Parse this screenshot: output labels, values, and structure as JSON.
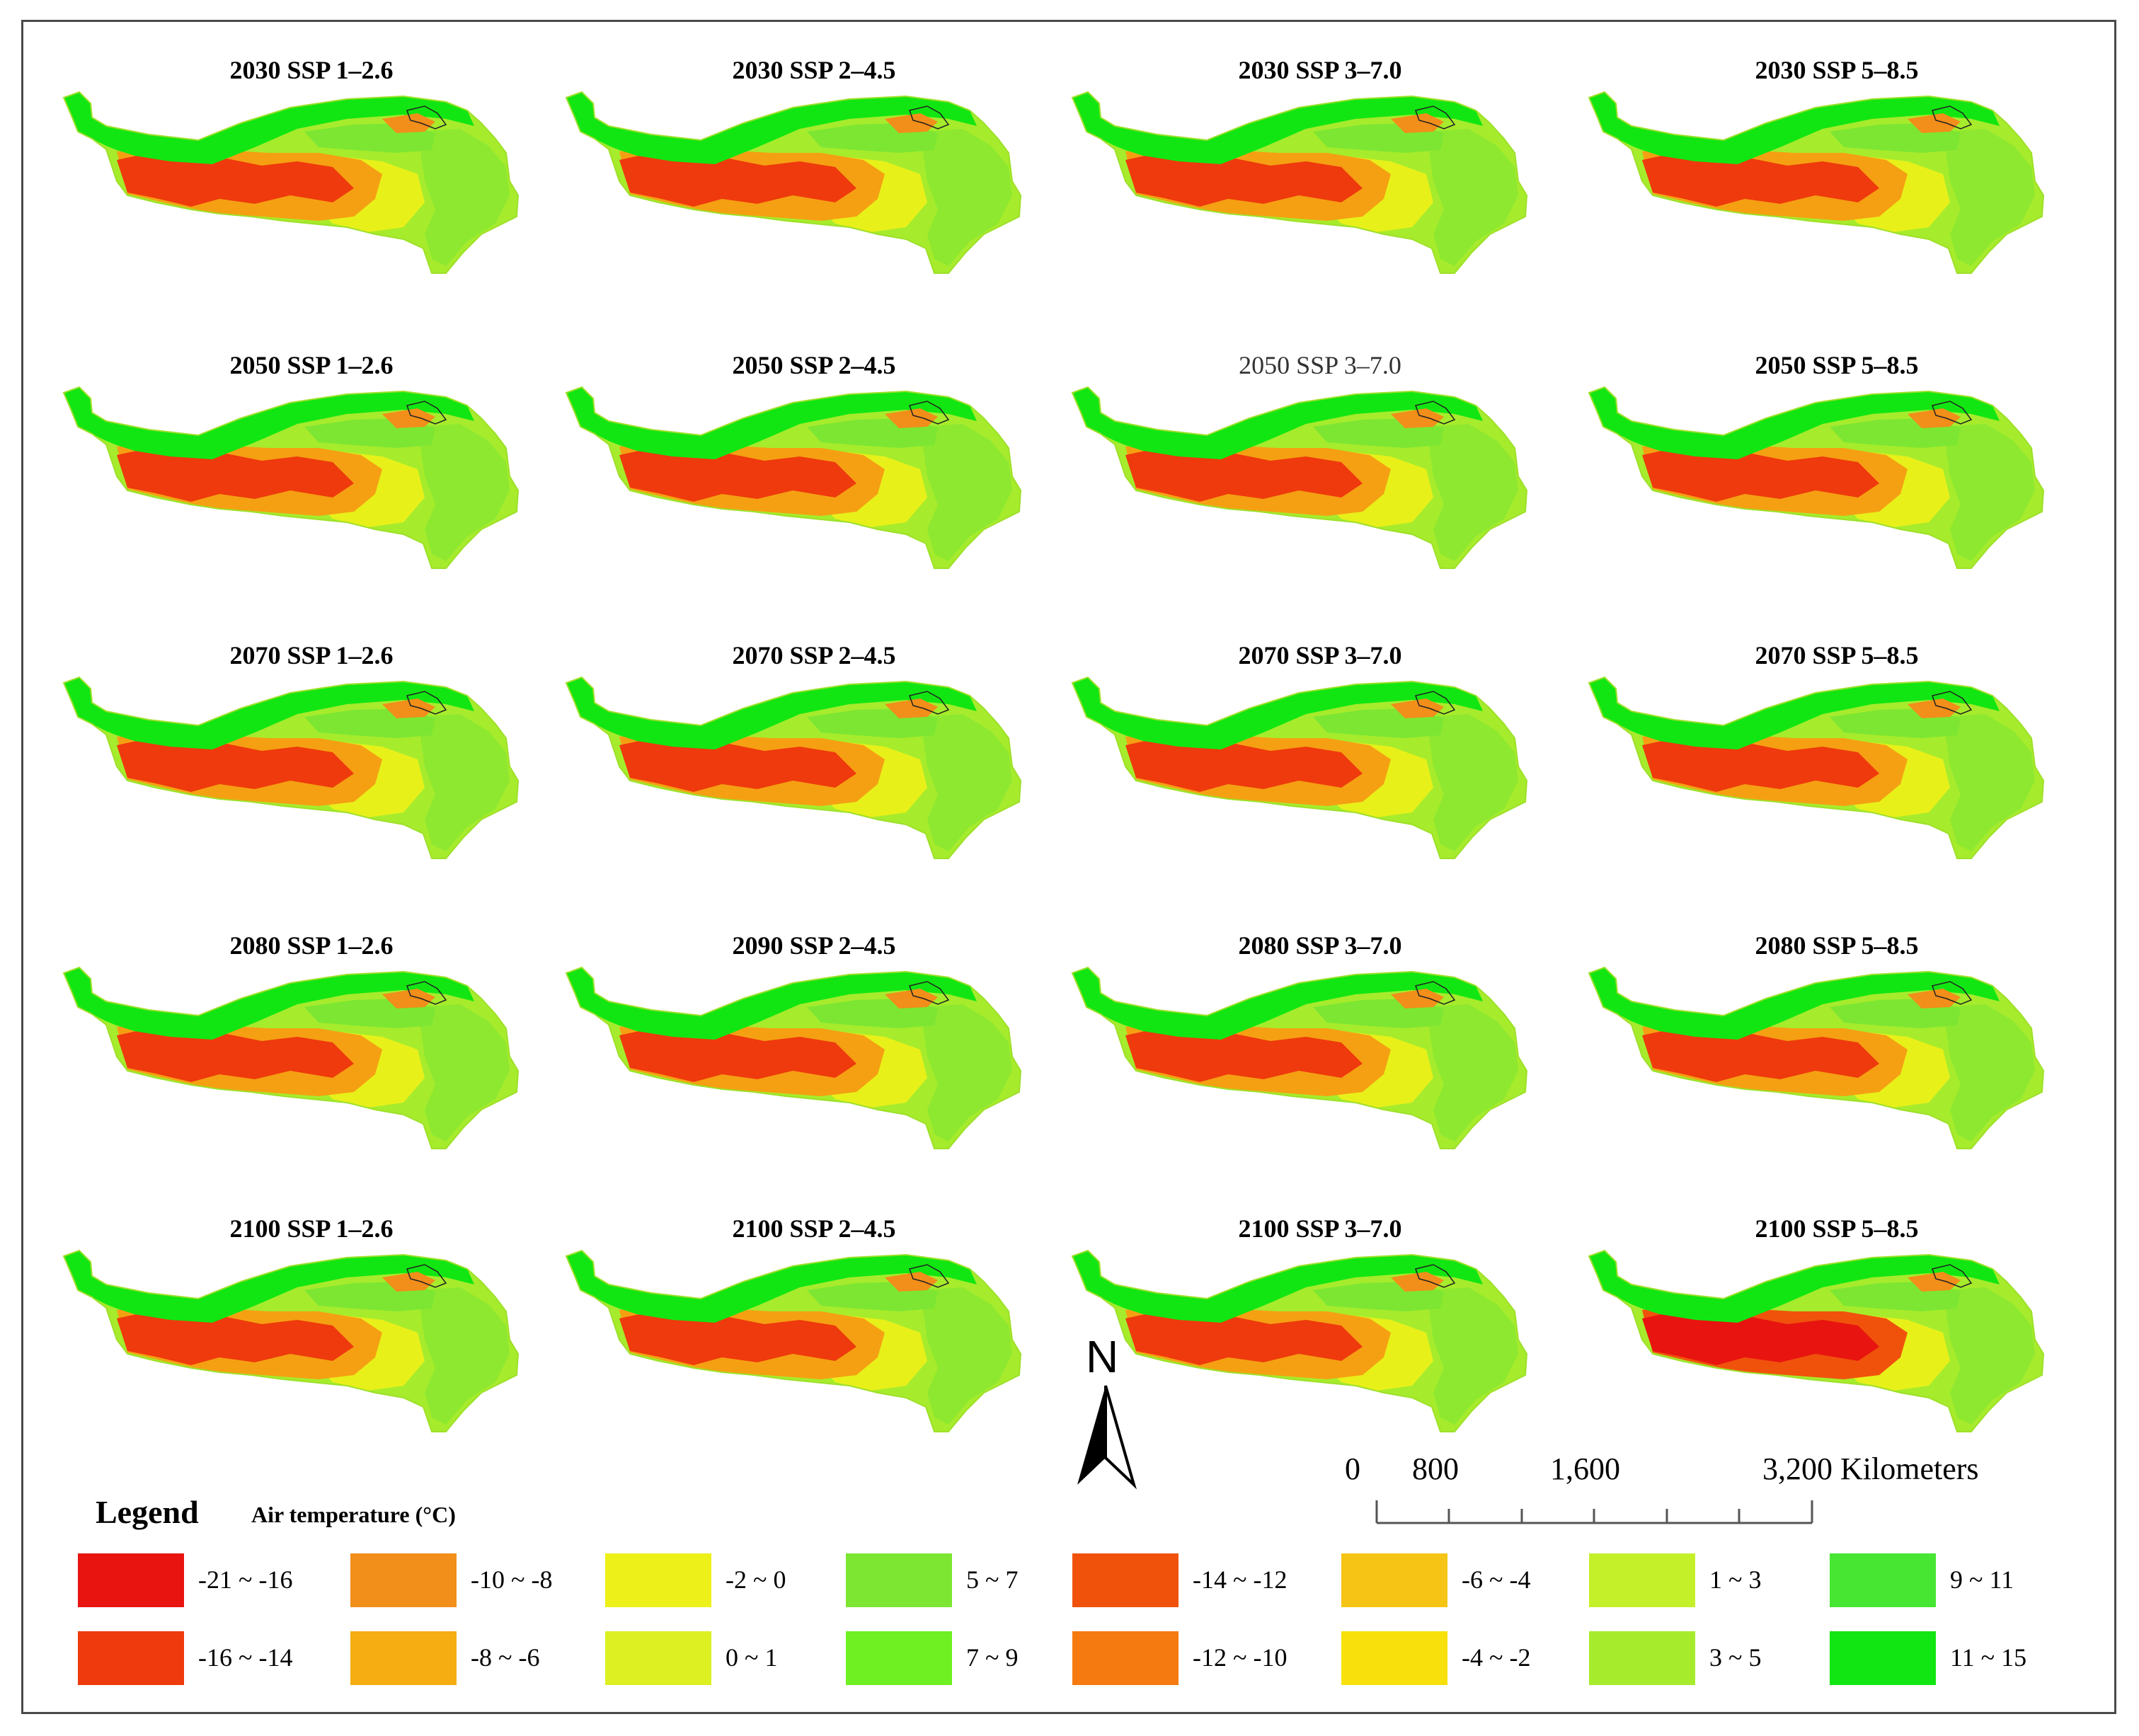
{
  "panels": [
    {
      "title": "2030 SSP 1–2.6",
      "warm": 0
    },
    {
      "title": "2030 SSP 2–4.5",
      "warm": 0
    },
    {
      "title": "2030 SSP 3–7.0",
      "warm": 0
    },
    {
      "title": "2030 SSP 5–8.5",
      "warm": 0
    },
    {
      "title": "2050 SSP 1–2.6",
      "warm": 0
    },
    {
      "title": "2050 SSP 2–4.5",
      "warm": 0
    },
    {
      "title": "2050 SSP 3–7.0",
      "warm": 0
    },
    {
      "title": "2050 SSP 5–8.5",
      "warm": 0
    },
    {
      "title": "2070 SSP 1–2.6",
      "warm": 0
    },
    {
      "title": "2070 SSP 2–4.5",
      "warm": 0
    },
    {
      "title": "2070 SSP 3–7.0",
      "warm": 0
    },
    {
      "title": "2070 SSP 5–8.5",
      "warm": 0
    },
    {
      "title": "2080 SSP 1–2.6",
      "warm": 0
    },
    {
      "title": "2090 SSP 2–4.5",
      "warm": 0
    },
    {
      "title": "2080 SSP 3–7.0",
      "warm": 0
    },
    {
      "title": "2080 SSP 5–8.5",
      "warm": 0
    },
    {
      "title": "2100 SSP 1–2.6",
      "warm": 0
    },
    {
      "title": "2100 SSP 2–4.5",
      "warm": 0
    },
    {
      "title": "2100 SSP 3–7.0",
      "warm": 0
    },
    {
      "title": "2100 SSP 5–8.5",
      "warm": 1
    }
  ],
  "north_arrow": {
    "label": "N"
  },
  "scale_bar": {
    "labels": [
      "0",
      "800",
      "1,600",
      "3,200 Kilometers"
    ],
    "units": "Kilometers"
  },
  "legend": {
    "title": "Legend",
    "subtitle": "Air temperature (°C)",
    "items": [
      {
        "label": "-21 ~ -16",
        "color": "#e8140f"
      },
      {
        "label": "-16 ~ -14",
        "color": "#ee3a0c"
      },
      {
        "label": "-10 ~ -8",
        "color": "#f28e1a"
      },
      {
        "label": "-8 ~ -6",
        "color": "#f5ad12"
      },
      {
        "label": "-2 ~ 0",
        "color": "#eef01a"
      },
      {
        "label": "0 ~ 1",
        "color": "#dcf022"
      },
      {
        "label": "5 ~ 7",
        "color": "#7de632"
      },
      {
        "label": "7 ~ 9",
        "color": "#6ef022"
      },
      {
        "label": "-14 ~ -12",
        "color": "#f0520c"
      },
      {
        "label": "-12 ~ -10",
        "color": "#f57a10"
      },
      {
        "label": "-6 ~ -4",
        "color": "#f5c414"
      },
      {
        "label": "-4 ~ -2",
        "color": "#f7e00c"
      },
      {
        "label": "1 ~ 3",
        "color": "#c4f02a"
      },
      {
        "label": "3 ~ 5",
        "color": "#a6ec2c"
      },
      {
        "label": "9 ~ 11",
        "color": "#46e632"
      },
      {
        "label": "11 ~ 15",
        "color": "#12e612"
      }
    ]
  }
}
